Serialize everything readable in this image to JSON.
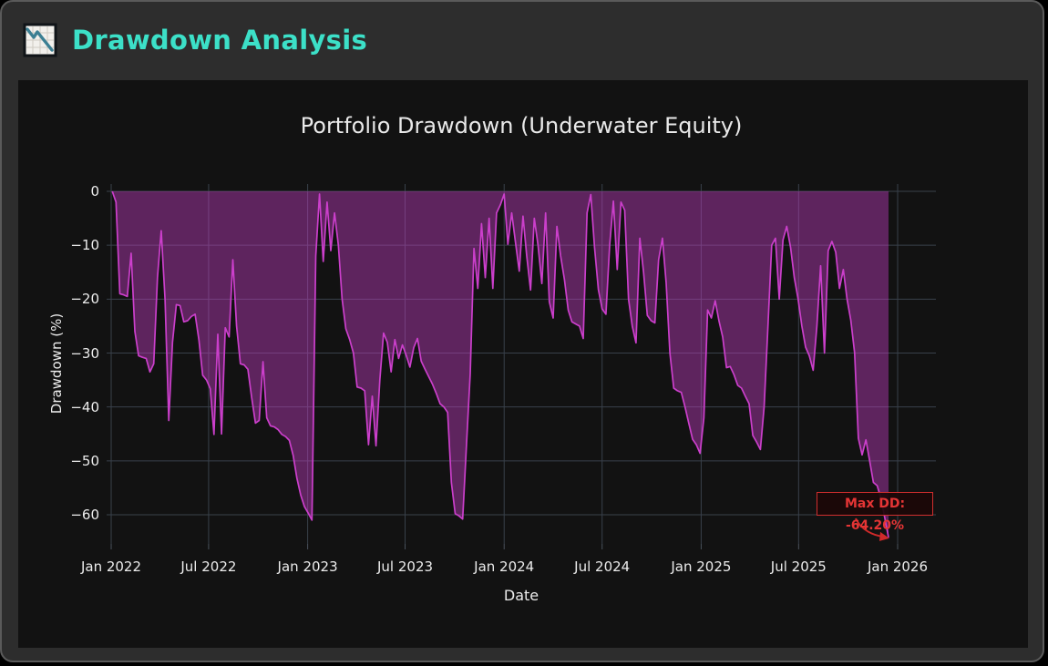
{
  "header": {
    "title": "Drawdown Analysis",
    "icon": "chart-decreasing"
  },
  "chart": {
    "title": "Portfolio Drawdown (Underwater Equity)",
    "xlabel": "Date",
    "ylabel": "Drawdown (%)",
    "annotation_label": "Max DD: -64.20%"
  },
  "colors": {
    "accent_teal": "#3ce0c8",
    "line_magenta": "#cb3fcb",
    "fill_magenta": "rgba(199,62,199,0.42)",
    "annotation_red": "#e53535",
    "grid": "#39414b",
    "panel_bg": "#121212",
    "window_bg": "#2d2d2d",
    "text": "#ececec"
  },
  "chart_data": {
    "type": "area",
    "title": "Portfolio Drawdown (Underwater Equity)",
    "xlabel": "Date",
    "ylabel": "Drawdown (%)",
    "legend": null,
    "grid": true,
    "ylim": [
      -65.5,
      1.5
    ],
    "y_ticks": [
      0,
      -10,
      -20,
      -30,
      -40,
      -50,
      -60
    ],
    "y_tick_labels": [
      "0",
      "−10",
      "−20",
      "−30",
      "−40",
      "−50",
      "−60"
    ],
    "x_tick_labels": [
      "Jan 2022",
      "Jul 2022",
      "Jan 2023",
      "Jul 2023",
      "Jan 2024",
      "Jul 2024",
      "Jan 2025",
      "Jul 2025",
      "Jan 2026"
    ],
    "x_tick_dates": [
      "2022-01-01",
      "2022-07-01",
      "2023-01-01",
      "2023-07-01",
      "2024-01-01",
      "2024-07-01",
      "2025-01-01",
      "2025-07-01",
      "2026-01-01"
    ],
    "start_date": "2022-01-03",
    "interval_days": 7,
    "n_points": 207,
    "end_date": "2025-12-15",
    "max_drawdown": {
      "text": "Max DD: -64.20%",
      "value": -64.2,
      "date": "2025-12-15"
    },
    "series": [
      {
        "name": "drawdown_pct",
        "values": [
          0,
          -2,
          -19,
          -19.2,
          -19.5,
          -11.5,
          -26,
          -30.5,
          -30.8,
          -31,
          -33.5,
          -32,
          -16,
          -7.3,
          -20,
          -42.5,
          -28,
          -21,
          -21.2,
          -24.2,
          -24,
          -23.2,
          -22.8,
          -27.6,
          -34.1,
          -35,
          -36.6,
          -45.1,
          -26.5,
          -45,
          -25.3,
          -27,
          -12.7,
          -25,
          -32,
          -32.2,
          -33,
          -38.3,
          -43,
          -42.5,
          -31.6,
          -42,
          -43.5,
          -43.7,
          -44.2,
          -45.1,
          -45.5,
          -46.2,
          -49,
          -53.2,
          -56.3,
          -58.5,
          -59.7,
          -61,
          -12,
          -0.5,
          -13,
          -2,
          -11,
          -4,
          -10,
          -20,
          -25.5,
          -27.5,
          -30,
          -36.3,
          -36.5,
          -37,
          -47,
          -38,
          -47.2,
          -35,
          -26.3,
          -28,
          -33.5,
          -27.5,
          -31,
          -28.5,
          -30.4,
          -32.6,
          -29,
          -27.3,
          -31.5,
          -33,
          -34.4,
          -35.8,
          -37.5,
          -39.4,
          -40,
          -41,
          -54,
          -59.8,
          -60.2,
          -60.8,
          -47,
          -33.8,
          -10.6,
          -18,
          -6,
          -16,
          -5,
          -18,
          -4,
          -2.5,
          -0.5,
          -9.8,
          -4,
          -9.4,
          -14.8,
          -4.6,
          -12,
          -18.3,
          -5,
          -10,
          -17.1,
          -4,
          -20.5,
          -23.5,
          -6.5,
          -12,
          -16.4,
          -22,
          -24.2,
          -24.6,
          -25,
          -27.3,
          -4,
          -0.6,
          -10.4,
          -18.2,
          -21.8,
          -22.8,
          -10,
          -1.8,
          -14.5,
          -2,
          -3.5,
          -20,
          -25,
          -28.1,
          -8.7,
          -15,
          -23,
          -24,
          -24.4,
          -12.7,
          -8.7,
          -17,
          -30,
          -36.5,
          -37,
          -37.3,
          -40,
          -43,
          -46,
          -47,
          -48.6,
          -42,
          -22,
          -23.5,
          -20.3,
          -24,
          -27,
          -32.7,
          -32.5,
          -34,
          -36,
          -36.5,
          -38,
          -39.4,
          -45.3,
          -46.5,
          -47.9,
          -40,
          -25,
          -10,
          -8.7,
          -20,
          -9,
          -6.5,
          -10.4,
          -16,
          -19.9,
          -25,
          -28.9,
          -30.5,
          -33.2,
          -25,
          -13.8,
          -30,
          -11,
          -9.3,
          -11.3,
          -18,
          -14.5,
          -20,
          -23.9,
          -30,
          -45.8,
          -48.9,
          -46.1,
          -50,
          -54,
          -54.6,
          -57,
          -60.5,
          -64.2
        ]
      }
    ]
  }
}
